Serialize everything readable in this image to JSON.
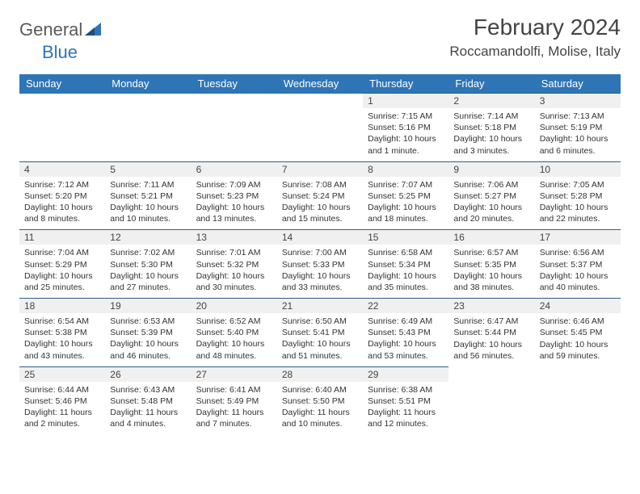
{
  "logo": {
    "word1": "General",
    "word2": "Blue"
  },
  "title": "February 2024",
  "location": "Roccamandolfi, Molise, Italy",
  "colors": {
    "header_bg": "#2e75b6",
    "header_fg": "#ffffff",
    "daynum_bg": "#f0f0f0",
    "rule": "#355a8a",
    "text": "#333333",
    "logo_gray": "#5a5a5a",
    "logo_blue": "#2e75b6",
    "page_bg": "#ffffff"
  },
  "day_names": [
    "Sunday",
    "Monday",
    "Tuesday",
    "Wednesday",
    "Thursday",
    "Friday",
    "Saturday"
  ],
  "weeks": [
    [
      null,
      null,
      null,
      null,
      {
        "n": "1",
        "sr": "7:15 AM",
        "ss": "5:16 PM",
        "dl": "10 hours and 1 minute."
      },
      {
        "n": "2",
        "sr": "7:14 AM",
        "ss": "5:18 PM",
        "dl": "10 hours and 3 minutes."
      },
      {
        "n": "3",
        "sr": "7:13 AM",
        "ss": "5:19 PM",
        "dl": "10 hours and 6 minutes."
      }
    ],
    [
      {
        "n": "4",
        "sr": "7:12 AM",
        "ss": "5:20 PM",
        "dl": "10 hours and 8 minutes."
      },
      {
        "n": "5",
        "sr": "7:11 AM",
        "ss": "5:21 PM",
        "dl": "10 hours and 10 minutes."
      },
      {
        "n": "6",
        "sr": "7:09 AM",
        "ss": "5:23 PM",
        "dl": "10 hours and 13 minutes."
      },
      {
        "n": "7",
        "sr": "7:08 AM",
        "ss": "5:24 PM",
        "dl": "10 hours and 15 minutes."
      },
      {
        "n": "8",
        "sr": "7:07 AM",
        "ss": "5:25 PM",
        "dl": "10 hours and 18 minutes."
      },
      {
        "n": "9",
        "sr": "7:06 AM",
        "ss": "5:27 PM",
        "dl": "10 hours and 20 minutes."
      },
      {
        "n": "10",
        "sr": "7:05 AM",
        "ss": "5:28 PM",
        "dl": "10 hours and 22 minutes."
      }
    ],
    [
      {
        "n": "11",
        "sr": "7:04 AM",
        "ss": "5:29 PM",
        "dl": "10 hours and 25 minutes."
      },
      {
        "n": "12",
        "sr": "7:02 AM",
        "ss": "5:30 PM",
        "dl": "10 hours and 27 minutes."
      },
      {
        "n": "13",
        "sr": "7:01 AM",
        "ss": "5:32 PM",
        "dl": "10 hours and 30 minutes."
      },
      {
        "n": "14",
        "sr": "7:00 AM",
        "ss": "5:33 PM",
        "dl": "10 hours and 33 minutes."
      },
      {
        "n": "15",
        "sr": "6:58 AM",
        "ss": "5:34 PM",
        "dl": "10 hours and 35 minutes."
      },
      {
        "n": "16",
        "sr": "6:57 AM",
        "ss": "5:35 PM",
        "dl": "10 hours and 38 minutes."
      },
      {
        "n": "17",
        "sr": "6:56 AM",
        "ss": "5:37 PM",
        "dl": "10 hours and 40 minutes."
      }
    ],
    [
      {
        "n": "18",
        "sr": "6:54 AM",
        "ss": "5:38 PM",
        "dl": "10 hours and 43 minutes."
      },
      {
        "n": "19",
        "sr": "6:53 AM",
        "ss": "5:39 PM",
        "dl": "10 hours and 46 minutes."
      },
      {
        "n": "20",
        "sr": "6:52 AM",
        "ss": "5:40 PM",
        "dl": "10 hours and 48 minutes."
      },
      {
        "n": "21",
        "sr": "6:50 AM",
        "ss": "5:41 PM",
        "dl": "10 hours and 51 minutes."
      },
      {
        "n": "22",
        "sr": "6:49 AM",
        "ss": "5:43 PM",
        "dl": "10 hours and 53 minutes."
      },
      {
        "n": "23",
        "sr": "6:47 AM",
        "ss": "5:44 PM",
        "dl": "10 hours and 56 minutes."
      },
      {
        "n": "24",
        "sr": "6:46 AM",
        "ss": "5:45 PM",
        "dl": "10 hours and 59 minutes."
      }
    ],
    [
      {
        "n": "25",
        "sr": "6:44 AM",
        "ss": "5:46 PM",
        "dl": "11 hours and 2 minutes."
      },
      {
        "n": "26",
        "sr": "6:43 AM",
        "ss": "5:48 PM",
        "dl": "11 hours and 4 minutes."
      },
      {
        "n": "27",
        "sr": "6:41 AM",
        "ss": "5:49 PM",
        "dl": "11 hours and 7 minutes."
      },
      {
        "n": "28",
        "sr": "6:40 AM",
        "ss": "5:50 PM",
        "dl": "11 hours and 10 minutes."
      },
      {
        "n": "29",
        "sr": "6:38 AM",
        "ss": "5:51 PM",
        "dl": "11 hours and 12 minutes."
      },
      null,
      null
    ]
  ],
  "labels": {
    "sunrise": "Sunrise:",
    "sunset": "Sunset:",
    "daylight": "Daylight:"
  }
}
